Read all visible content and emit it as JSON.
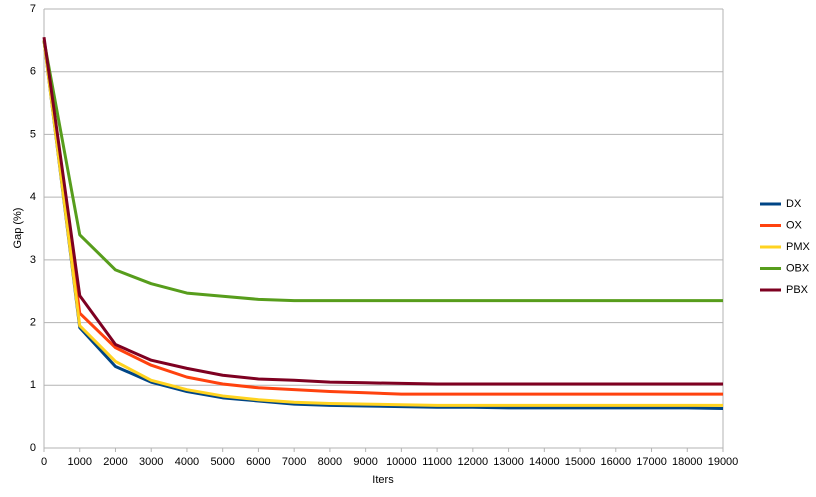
{
  "chart_data": {
    "type": "line",
    "x_label": "Iters",
    "y_label": "Gap (%)",
    "x": [
      0,
      1000,
      2000,
      3000,
      4000,
      5000,
      6000,
      7000,
      8000,
      9000,
      10000,
      11000,
      12000,
      13000,
      14000,
      15000,
      16000,
      17000,
      18000,
      19000
    ],
    "series": [
      {
        "name": "DX",
        "color": "#004586",
        "values": [
          6.5,
          1.92,
          1.3,
          1.05,
          0.9,
          0.8,
          0.75,
          0.7,
          0.68,
          0.67,
          0.66,
          0.65,
          0.65,
          0.64,
          0.64,
          0.64,
          0.64,
          0.64,
          0.64,
          0.63
        ]
      },
      {
        "name": "OX",
        "color": "#ff420e",
        "values": [
          6.5,
          2.15,
          1.6,
          1.32,
          1.13,
          1.02,
          0.96,
          0.93,
          0.9,
          0.88,
          0.86,
          0.86,
          0.86,
          0.86,
          0.86,
          0.86,
          0.86,
          0.86,
          0.86,
          0.86
        ]
      },
      {
        "name": "PMX",
        "color": "#ffd320",
        "values": [
          6.5,
          1.95,
          1.38,
          1.08,
          0.93,
          0.83,
          0.77,
          0.73,
          0.71,
          0.7,
          0.69,
          0.68,
          0.68,
          0.68,
          0.68,
          0.68,
          0.68,
          0.68,
          0.68,
          0.68
        ]
      },
      {
        "name": "OBX",
        "color": "#579d1c",
        "values": [
          6.5,
          3.4,
          2.84,
          2.62,
          2.47,
          2.42,
          2.37,
          2.35,
          2.35,
          2.35,
          2.35,
          2.35,
          2.35,
          2.35,
          2.35,
          2.35,
          2.35,
          2.35,
          2.35,
          2.35
        ]
      },
      {
        "name": "PBX",
        "color": "#7e0021",
        "values": [
          6.55,
          2.43,
          1.65,
          1.4,
          1.27,
          1.16,
          1.1,
          1.08,
          1.05,
          1.04,
          1.03,
          1.02,
          1.02,
          1.02,
          1.02,
          1.02,
          1.02,
          1.02,
          1.02,
          1.02
        ]
      }
    ],
    "xlim": [
      0,
      19000
    ],
    "xticks": [
      0,
      1000,
      2000,
      3000,
      4000,
      5000,
      6000,
      7000,
      8000,
      9000,
      10000,
      11000,
      12000,
      13000,
      14000,
      15000,
      16000,
      17000,
      18000,
      19000
    ],
    "ylim": [
      0,
      7
    ],
    "yticks": [
      0,
      1,
      2,
      3,
      4,
      5,
      6,
      7
    ],
    "grid": true,
    "legend": "right"
  }
}
